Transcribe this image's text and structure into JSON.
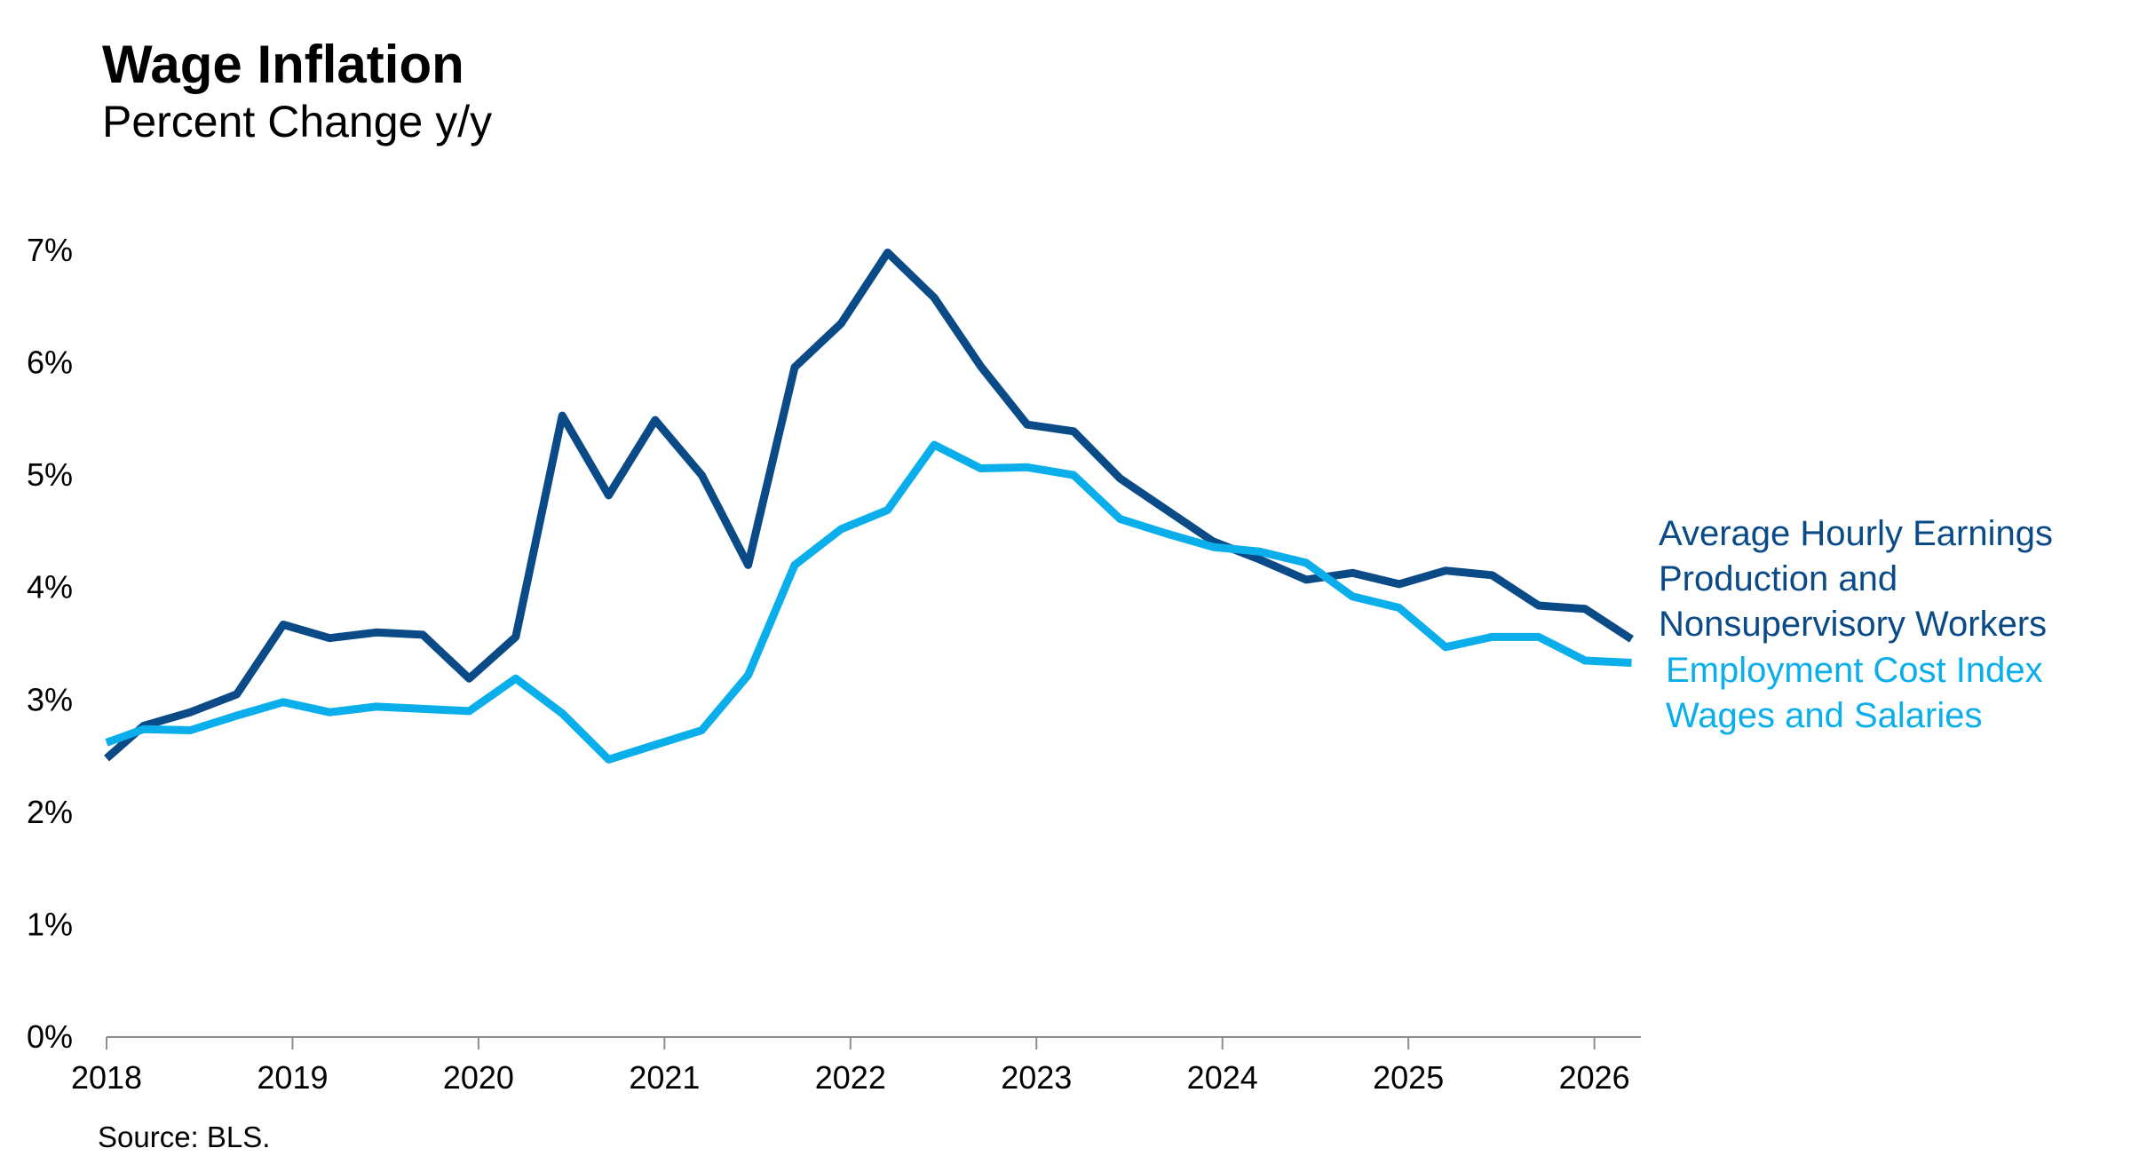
{
  "chart_data": {
    "type": "line",
    "title": "Wage Inflation",
    "subtitle": "Percent Change y/y",
    "source": "Source: BLS.",
    "xlim": [
      2018.0,
      2026.25
    ],
    "ylim": [
      0,
      7
    ],
    "x_ticks": [
      {
        "value": 2018,
        "label": "2018"
      },
      {
        "value": 2019,
        "label": "2019"
      },
      {
        "value": 2020,
        "label": "2020"
      },
      {
        "value": 2021,
        "label": "2021"
      },
      {
        "value": 2022,
        "label": "2022"
      },
      {
        "value": 2023,
        "label": "2023"
      },
      {
        "value": 2024,
        "label": "2024"
      },
      {
        "value": 2025,
        "label": "2025"
      },
      {
        "value": 2026,
        "label": "2026"
      }
    ],
    "y_ticks": [
      {
        "value": 0,
        "label": "0%"
      },
      {
        "value": 1,
        "label": "1%"
      },
      {
        "value": 2,
        "label": "2%"
      },
      {
        "value": 3,
        "label": "3%"
      },
      {
        "value": 4,
        "label": "4%"
      },
      {
        "value": 5,
        "label": "5%"
      },
      {
        "value": 6,
        "label": "6%"
      },
      {
        "value": 7,
        "label": "7%"
      }
    ],
    "grid": false,
    "legend_position": "right",
    "series": [
      {
        "name": "Average Hourly Earnings Production and Nonsupervisory Workers",
        "label_lines": [
          "Average Hourly Earnings",
          "Production and",
          "Nonsupervisory Workers"
        ],
        "color": "#0a4a86",
        "x": [
          2018.0,
          2018.2,
          2018.45,
          2018.7,
          2018.95,
          2019.2,
          2019.45,
          2019.7,
          2019.95,
          2020.2,
          2020.45,
          2020.7,
          2020.95,
          2021.2,
          2021.45,
          2021.7,
          2021.95,
          2022.2,
          2022.45,
          2022.7,
          2022.95,
          2023.2,
          2023.45,
          2023.7,
          2023.95,
          2024.2,
          2024.45,
          2024.7,
          2024.95,
          2025.2,
          2025.45,
          2025.7,
          2025.95,
          2026.2
        ],
        "values": [
          2.48,
          2.77,
          2.89,
          3.05,
          3.67,
          3.55,
          3.6,
          3.58,
          3.19,
          3.56,
          5.53,
          4.82,
          5.49,
          5.0,
          4.2,
          5.96,
          6.35,
          6.98,
          6.58,
          5.97,
          5.45,
          5.39,
          4.97,
          4.69,
          4.41,
          4.25,
          4.07,
          4.13,
          4.03,
          4.15,
          4.11,
          3.84,
          3.81,
          3.54
        ]
      },
      {
        "name": "Employment Cost Index Wages and Salaries",
        "label_lines": [
          "Employment Cost Index",
          "Wages and Salaries"
        ],
        "color": "#0aaeea",
        "x": [
          2018.0,
          2018.2,
          2018.45,
          2018.7,
          2018.95,
          2019.2,
          2019.45,
          2019.7,
          2019.95,
          2020.2,
          2020.45,
          2020.7,
          2020.95,
          2021.2,
          2021.45,
          2021.7,
          2021.95,
          2022.2,
          2022.45,
          2022.7,
          2022.95,
          2023.2,
          2023.45,
          2023.7,
          2023.95,
          2024.2,
          2024.45,
          2024.7,
          2024.95,
          2025.2,
          2025.45,
          2025.7,
          2025.95,
          2026.2
        ],
        "values": [
          2.62,
          2.74,
          2.73,
          2.86,
          2.98,
          2.89,
          2.94,
          2.92,
          2.9,
          3.19,
          2.88,
          2.47,
          2.6,
          2.73,
          3.22,
          4.2,
          4.52,
          4.69,
          5.27,
          5.06,
          5.07,
          5.0,
          4.61,
          4.48,
          4.36,
          4.32,
          4.22,
          3.92,
          3.82,
          3.47,
          3.56,
          3.56,
          3.35,
          3.33
        ]
      }
    ]
  }
}
